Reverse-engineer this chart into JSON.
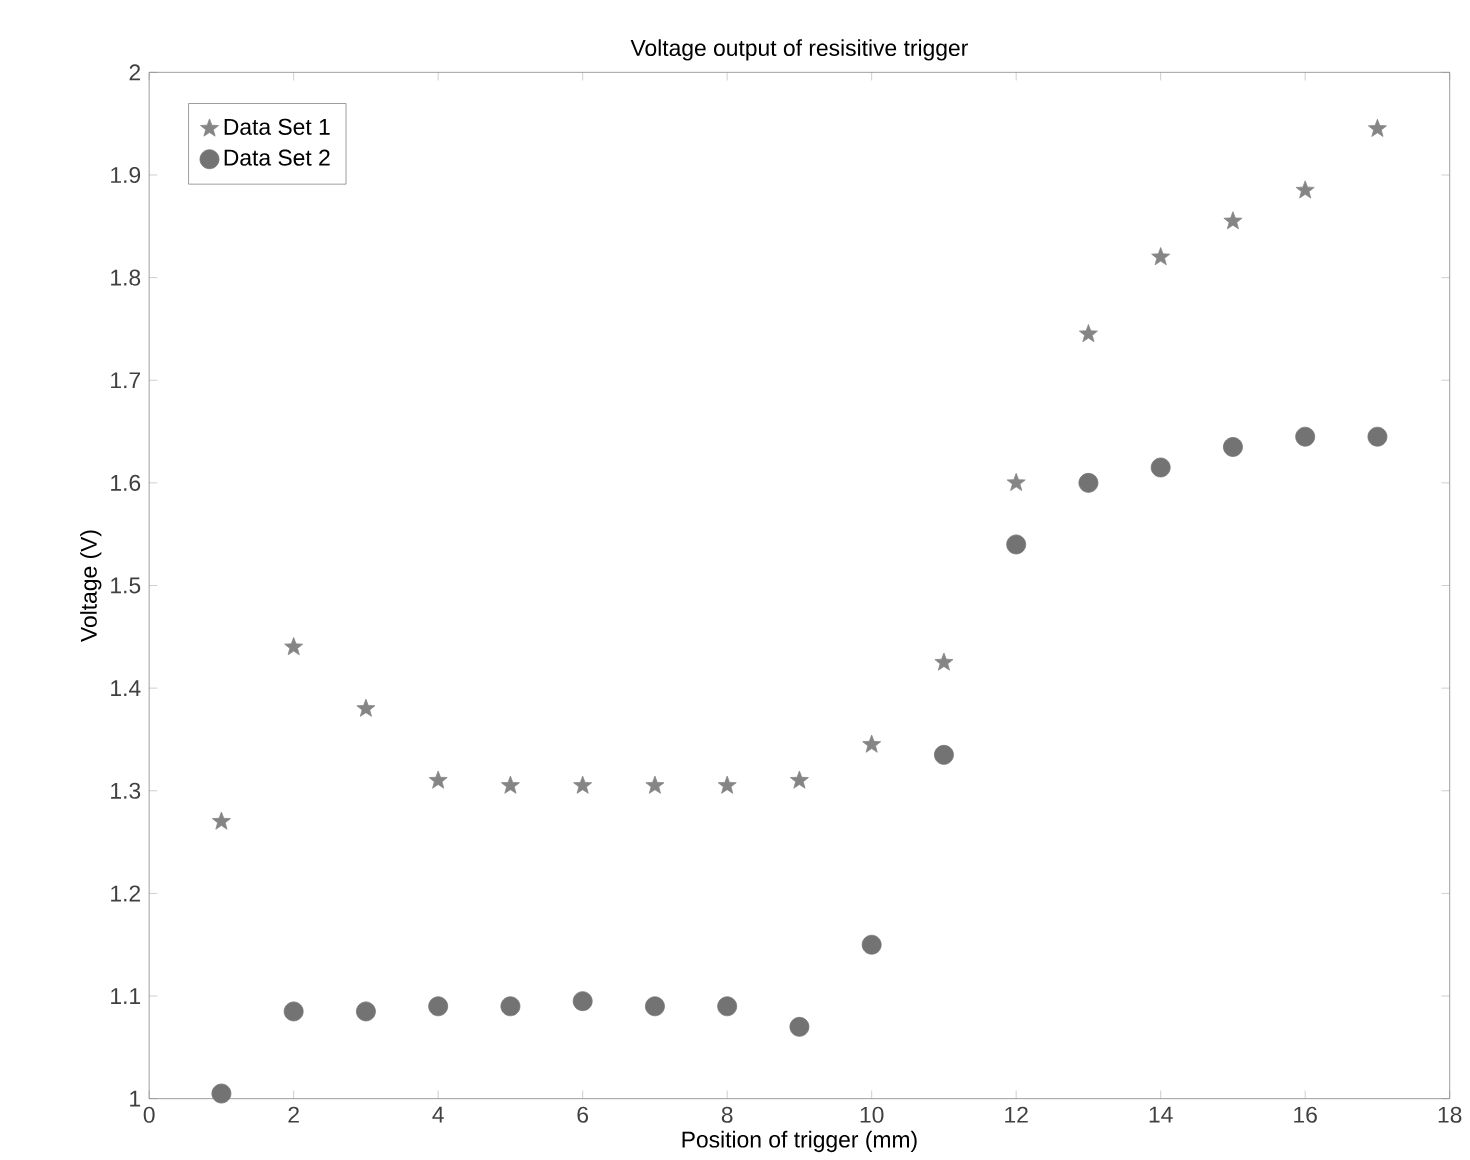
{
  "chart_data": {
    "type": "scatter",
    "title": "Voltage output of resisitive trigger",
    "xlabel": "Position of trigger (mm)",
    "ylabel": "Voltage (V)",
    "x": [
      1,
      2,
      3,
      4,
      5,
      6,
      7,
      8,
      9,
      10,
      11,
      12,
      13,
      14,
      15,
      16,
      17
    ],
    "series": [
      {
        "name": "Data Set 1",
        "color": "#858585",
        "marker": "star",
        "values": [
          1.27,
          1.44,
          1.38,
          1.31,
          1.305,
          1.305,
          1.305,
          1.305,
          1.31,
          1.345,
          1.425,
          1.6,
          1.745,
          1.82,
          1.855,
          1.885,
          1.945
        ]
      },
      {
        "name": "Data Set 2",
        "color": "#737373",
        "marker": "circle",
        "values": [
          1.005,
          1.085,
          1.085,
          1.09,
          1.09,
          1.095,
          1.09,
          1.09,
          1.07,
          1.15,
          1.335,
          1.54,
          1.6,
          1.615,
          1.635,
          1.645,
          1.645
        ]
      }
    ],
    "xlim": [
      0,
      18
    ],
    "xticks": [
      0,
      2,
      4,
      6,
      8,
      10,
      12,
      14,
      16,
      18
    ],
    "ylim": [
      1,
      2
    ],
    "yticks": [
      1,
      1.1,
      1.2,
      1.3,
      1.4,
      1.5,
      1.6,
      1.7,
      1.8,
      1.9,
      2
    ],
    "grid": false,
    "legend": "top left"
  }
}
